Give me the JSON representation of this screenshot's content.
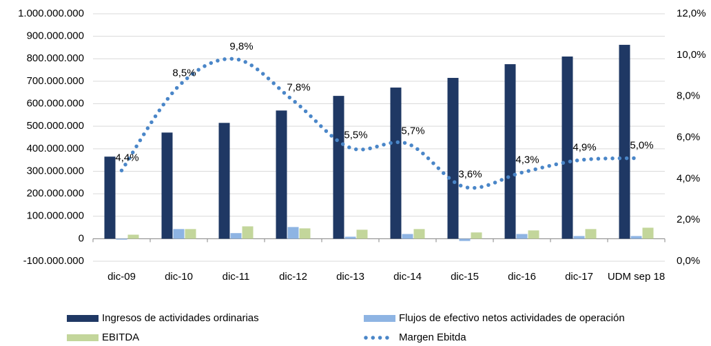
{
  "chart_data": {
    "type": "bar",
    "categories": [
      "dic-09",
      "dic-10",
      "dic-11",
      "dic-12",
      "dic-13",
      "dic-14",
      "dic-15",
      "dic-16",
      "dic-17",
      "UDM sep 18"
    ],
    "series": [
      {
        "name": "Ingresos de actividades ordinarias",
        "type": "bar",
        "color": "#1f3864",
        "values": [
          365000000,
          472000000,
          515000000,
          570000000,
          635000000,
          672000000,
          715000000,
          776000000,
          810000000,
          862000000
        ]
      },
      {
        "name": "Flujos de efectivo netos actividades de operación",
        "type": "bar",
        "color": "#8eb4e3",
        "values": [
          -4000000,
          43000000,
          25000000,
          52000000,
          9000000,
          21000000,
          -10000000,
          21000000,
          12000000,
          12000000
        ]
      },
      {
        "name": "EBITDA",
        "type": "bar",
        "color": "#c3d69b",
        "values": [
          18000000,
          43000000,
          55000000,
          46000000,
          40000000,
          43000000,
          28000000,
          37000000,
          43000000,
          49000000
        ]
      },
      {
        "name": "Margen Ebitda",
        "type": "line",
        "axis": "y2",
        "color": "#4a86c8",
        "values": [
          4.4,
          8.5,
          9.8,
          7.8,
          5.5,
          5.7,
          3.6,
          4.3,
          4.9,
          5.0
        ],
        "value_labels": [
          "4,4%",
          "8,5%",
          "9,8%",
          "7,8%",
          "5,5%",
          "5,7%",
          "3,6%",
          "4,3%",
          "4,9%",
          "5,0%"
        ]
      }
    ],
    "ylim": [
      -100000000,
      1000000000
    ],
    "yticks": [
      {
        "value": -100000000,
        "label": "-100.000.000"
      },
      0,
      {
        "value": 100000000,
        "label": "100.000.000"
      },
      {
        "value": 200000000,
        "label": "200.000.000"
      },
      {
        "value": 300000000,
        "label": "300.000.000"
      },
      {
        "value": 400000000,
        "label": "400.000.000"
      },
      {
        "value": 500000000,
        "label": "500.000.000"
      },
      {
        "value": 600000000,
        "label": "600.000.000"
      },
      {
        "value": 700000000,
        "label": "700.000.000"
      },
      {
        "value": 800000000,
        "label": "800.000.000"
      },
      {
        "value": 900000000,
        "label": "900.000.000"
      },
      {
        "value": 1000000000,
        "label": "1.000.000.000"
      }
    ],
    "y2lim": [
      0,
      12
    ],
    "y2ticks": [
      {
        "value": 0,
        "label": "0,0%"
      },
      {
        "value": 2,
        "label": "2,0%"
      },
      {
        "value": 4,
        "label": "4,0%"
      },
      {
        "value": 6,
        "label": "6,0%"
      },
      {
        "value": 8,
        "label": "8,0%"
      },
      {
        "value": 10,
        "label": "10,0%"
      },
      {
        "value": 12,
        "label": "12,0%"
      }
    ],
    "grid": true,
    "legend": "bottom"
  }
}
